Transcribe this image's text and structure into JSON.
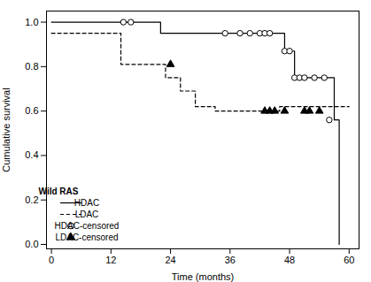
{
  "chart_data": {
    "type": "line",
    "xlabel": "Time (months)",
    "ylabel": "Cumulative survival",
    "xlim": [
      -1,
      62
    ],
    "ylim": [
      -0.02,
      1.05
    ],
    "xticks": [
      0,
      12,
      24,
      36,
      48,
      60
    ],
    "yticks": [
      {
        "value": 0.0,
        "label": "0.0"
      },
      0.2,
      0.4,
      0.6,
      0.8,
      {
        "value": 1.0,
        "label": "1.0"
      }
    ],
    "grid": false,
    "legend": "lower left",
    "legend_title": "Wild RAS",
    "series": [
      {
        "name": "HDAC",
        "type": "line",
        "line_style": "solid",
        "color": "#000000",
        "x": [
          0,
          14,
          14,
          22,
          22,
          30,
          30,
          44,
          44,
          47,
          47,
          49,
          49,
          52,
          52,
          57,
          57,
          58,
          58
        ],
        "values": [
          1.0,
          1.0,
          1.0,
          1.0,
          0.95,
          0.95,
          0.95,
          0.95,
          0.95,
          0.95,
          0.87,
          0.87,
          0.75,
          0.75,
          0.75,
          0.75,
          0.56,
          0.56,
          0.0
        ]
      },
      {
        "name": "LDAC",
        "type": "line",
        "line_style": "dashed",
        "color": "#000000",
        "x": [
          0,
          14,
          14,
          23,
          23,
          26,
          26,
          29,
          29,
          33,
          33,
          36,
          36,
          40,
          40,
          43,
          43,
          46,
          46,
          57,
          57,
          60
        ],
        "values": [
          0.95,
          0.95,
          0.81,
          0.81,
          0.75,
          0.75,
          0.69,
          0.69,
          0.62,
          0.62,
          0.6,
          0.6,
          0.6,
          0.6,
          0.6,
          0.6,
          0.6,
          0.6,
          0.62,
          0.62,
          0.62,
          0.62
        ]
      },
      {
        "name": "HDAC-censored",
        "type": "scatter",
        "marker": "open_circle",
        "color": "#000000",
        "x": [
          14.5,
          16,
          35,
          38,
          40,
          42,
          43,
          44,
          47,
          48,
          49,
          50,
          51,
          53,
          55,
          56
        ],
        "values": [
          1.0,
          1.0,
          0.95,
          0.95,
          0.95,
          0.95,
          0.95,
          0.95,
          0.87,
          0.87,
          0.75,
          0.75,
          0.75,
          0.75,
          0.75,
          0.56
        ]
      },
      {
        "name": "LDAC-censored",
        "type": "scatter",
        "marker": "triangle",
        "color": "#000000",
        "x": [
          24,
          43,
          44,
          45,
          47,
          51,
          52,
          54
        ],
        "values": [
          0.81,
          0.6,
          0.6,
          0.6,
          0.6,
          0.6,
          0.6,
          0.6
        ]
      }
    ]
  }
}
